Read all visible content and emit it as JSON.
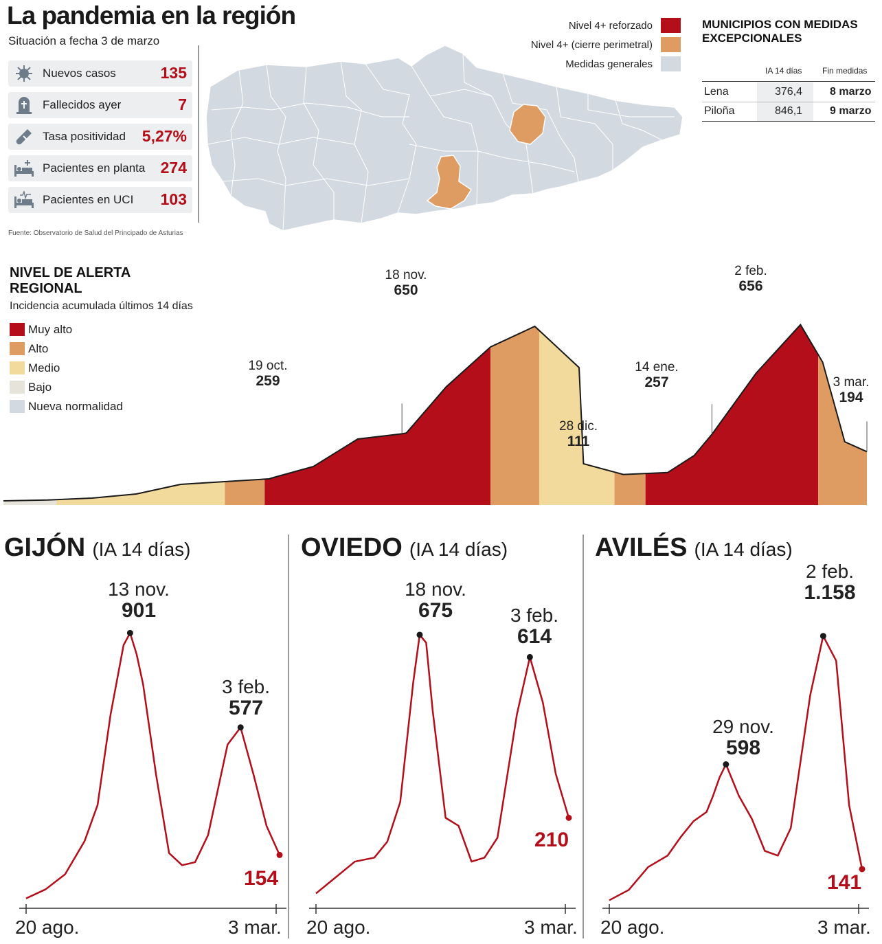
{
  "header": {
    "title": "La pandemia en la región",
    "subtitle": "Situación a fecha 3 de marzo",
    "source": "Fuente: Observatorio de Salud del Principado de Asturias"
  },
  "stats": [
    {
      "label": "Nuevos casos",
      "value": "135",
      "icon": "virus-icon"
    },
    {
      "label": "Fallecidos ayer",
      "value": "7",
      "icon": "tombstone-icon"
    },
    {
      "label": "Tasa positividad",
      "value": "5,27%",
      "icon": "test-tube-icon"
    },
    {
      "label": "Pacientes en planta",
      "value": "274",
      "icon": "hospital-bed-icon"
    },
    {
      "label": "Pacientes en UCI",
      "value": "103",
      "icon": "icu-bed-icon"
    }
  ],
  "map_legend": [
    {
      "label": "Nivel 4+ reforzado",
      "color": "#b30e19"
    },
    {
      "label": "Nivel 4+ (cierre perimetral)",
      "color": "#df9c62"
    },
    {
      "label": "Medidas generales",
      "color": "#d3d9e0"
    }
  ],
  "municipios": {
    "title_line1": "MUNICIPIOS CON MEDIDAS",
    "title_line2": "EXCEPCIONALES",
    "col_ia": "IA 14 días",
    "col_fin": "Fin medidas",
    "rows": [
      {
        "name": "Lena",
        "ia": "376,4",
        "fin": "8 marzo"
      },
      {
        "name": "Piloña",
        "ia": "846,1",
        "fin": "9 marzo"
      }
    ]
  },
  "alert": {
    "title_line1": "NIVEL DE ALERTA",
    "title_line2": "REGIONAL",
    "subtitle": "Incidencia acumulada últimos 14 días",
    "levels": [
      {
        "label": "Muy alto",
        "color": "#b30e19"
      },
      {
        "label": "Alto",
        "color": "#df9c62"
      },
      {
        "label": "Medio",
        "color": "#f2da9d"
      },
      {
        "label": "Bajo",
        "color": "#e6e3da"
      },
      {
        "label": "Nueva normalidad",
        "color": "#d3d9e0"
      }
    ],
    "annotations": [
      {
        "date": "19 oct.",
        "value": "259"
      },
      {
        "date": "18 nov.",
        "value": "650"
      },
      {
        "date": "28 dic.",
        "value": "111"
      },
      {
        "date": "14 ene.",
        "value": "257"
      },
      {
        "date": "2 feb.",
        "value": "656"
      },
      {
        "date": "3 mar.",
        "value": "194"
      }
    ]
  },
  "cities": {
    "ia_label": "(IA 14 días)",
    "x_start": "20 ago.",
    "x_end": "3 mar.",
    "gijon": {
      "name": "GIJÓN",
      "peak1_date": "13 nov.",
      "peak1_value": "901",
      "peak2_date": "3 feb.",
      "peak2_value": "577",
      "end_value": "154"
    },
    "oviedo": {
      "name": "OVIEDO",
      "peak1_date": "18 nov.",
      "peak1_value": "675",
      "peak2_date": "3 feb.",
      "peak2_value": "614",
      "end_value": "210"
    },
    "aviles": {
      "name": "AVILÉS",
      "peak1_date": "29 nov.",
      "peak1_value": "598",
      "peak2_date": "2 feb.",
      "peak2_value": "1.158",
      "end_value": "141"
    }
  },
  "chart_data": [
    {
      "type": "area",
      "title": "NIVEL DE ALERTA REGIONAL",
      "subtitle": "Incidencia acumulada últimos 14 días",
      "x": [
        0,
        10,
        20,
        30,
        40,
        50,
        60,
        61,
        70,
        80,
        90,
        91,
        100,
        110,
        120,
        130,
        131,
        140,
        150,
        156,
        160,
        170,
        180,
        185,
        190,
        195
      ],
      "y": [
        15,
        18,
        25,
        40,
        75,
        85,
        95,
        100,
        140,
        240,
        259,
        262,
        430,
        575,
        650,
        500,
        150,
        111,
        118,
        180,
        257,
        480,
        656,
        520,
        230,
        194
      ],
      "x_start_label": "20 ago.",
      "x_end_label": "3 mar.",
      "level_bands": [
        {
          "level": "Bajo",
          "from": 0,
          "to": 12
        },
        {
          "level": "Medio",
          "from": 12,
          "to": 50
        },
        {
          "level": "Alto",
          "from": 50,
          "to": 59
        },
        {
          "level": "Muy alto",
          "from": 59,
          "to": 110
        },
        {
          "level": "Alto",
          "from": 110,
          "to": 121
        },
        {
          "level": "Medio",
          "from": 121,
          "to": 138
        },
        {
          "level": "Alto",
          "from": 138,
          "to": 145
        },
        {
          "level": "Muy alto",
          "from": 145,
          "to": 184
        },
        {
          "level": "Alto",
          "from": 184,
          "to": 195
        }
      ],
      "ylim": [
        0,
        700
      ]
    },
    {
      "type": "line",
      "title": "GIJÓN",
      "x": [
        0,
        15,
        30,
        45,
        55,
        65,
        75,
        80,
        85,
        90,
        100,
        110,
        120,
        130,
        140,
        155,
        165,
        175,
        185,
        195
      ],
      "y": [
        10,
        40,
        90,
        200,
        320,
        620,
        850,
        890,
        820,
        720,
        420,
        160,
        120,
        130,
        220,
        520,
        577,
        420,
        250,
        154
      ],
      "xlabels": [
        "20 ago.",
        "3 mar."
      ],
      "ylim": [
        0,
        950
      ]
    },
    {
      "type": "line",
      "title": "OVIEDO",
      "x": [
        0,
        15,
        30,
        45,
        55,
        65,
        75,
        80,
        85,
        90,
        100,
        110,
        120,
        130,
        140,
        155,
        165,
        175,
        185,
        195
      ],
      "y": [
        20,
        60,
        100,
        110,
        150,
        250,
        550,
        670,
        650,
        480,
        210,
        190,
        100,
        110,
        160,
        470,
        614,
        500,
        320,
        210
      ],
      "xlabels": [
        "20 ago.",
        "3 mar."
      ],
      "ylim": [
        0,
        720
      ]
    },
    {
      "type": "line",
      "title": "AVILÉS",
      "x": [
        0,
        15,
        30,
        45,
        55,
        65,
        75,
        80,
        85,
        90,
        100,
        110,
        120,
        130,
        140,
        155,
        165,
        175,
        185,
        195
      ],
      "y": [
        5,
        50,
        150,
        200,
        280,
        350,
        390,
        460,
        540,
        598,
        460,
        360,
        220,
        200,
        320,
        900,
        1158,
        1050,
        420,
        141
      ],
      "xlabels": [
        "20 ago.",
        "3 mar."
      ],
      "ylim": [
        0,
        1250
      ]
    }
  ]
}
